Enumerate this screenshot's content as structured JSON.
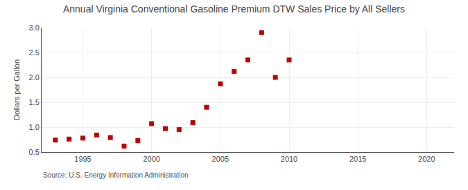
{
  "chart_data": {
    "type": "scatter",
    "title": "Annual Virginia Conventional Gasoline Premium DTW Sales Price by All Sellers",
    "ylabel": "Dollars per Gallon",
    "annotations": [
      "Source: U.S. Energy Information Administration"
    ],
    "x": [
      1993,
      1994,
      1995,
      1996,
      1997,
      1998,
      1999,
      2000,
      2001,
      2002,
      2003,
      2004,
      2005,
      2006,
      2007,
      2008,
      2009,
      2010
    ],
    "values": [
      0.74,
      0.76,
      0.78,
      0.84,
      0.79,
      0.62,
      0.73,
      1.07,
      0.97,
      0.95,
      1.09,
      1.4,
      1.87,
      2.12,
      2.35,
      2.9,
      2.0,
      2.35
    ],
    "color": "#c00000",
    "marker": "square",
    "xlim": [
      1992,
      2022
    ],
    "ylim": [
      0.5,
      3.0
    ],
    "xticks": [
      1995,
      2000,
      2005,
      2010,
      2015,
      2020
    ],
    "yticks": [
      0.5,
      {
        "value": 1.0,
        "label": "1.0"
      },
      1.5,
      {
        "value": 2.0,
        "label": "2.0"
      },
      2.5,
      {
        "value": 3.0,
        "label": "3.0"
      }
    ],
    "grid": true
  }
}
